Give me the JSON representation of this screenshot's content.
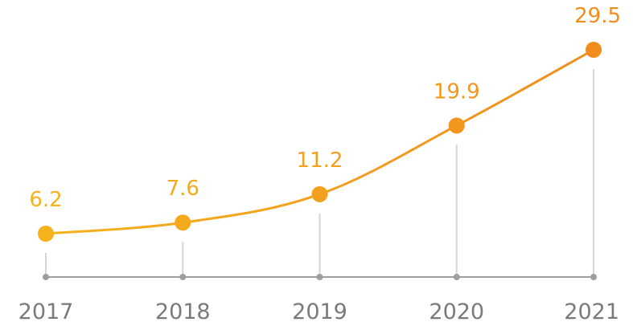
{
  "chart_data": {
    "type": "line",
    "categories": [
      "2017",
      "2018",
      "2019",
      "2020",
      "2021"
    ],
    "series": [
      {
        "values": [
          6.2,
          7.6,
          11.2,
          19.9,
          29.5
        ]
      }
    ],
    "data_labels": [
      "6.2",
      "7.6",
      "11.2",
      "19.9",
      "29.5"
    ],
    "title": "",
    "xlabel": "",
    "ylabel": "",
    "y_axis_visible": false,
    "grid": false,
    "drop_lines": true,
    "smoothed": true,
    "colors": {
      "gradient_start": "#f5b21b",
      "gradient_end": "#f28c1e",
      "baseline": "#9e9e9e",
      "drop_line": "#d6d6d6",
      "tick_label": "#7a7a7a"
    }
  }
}
